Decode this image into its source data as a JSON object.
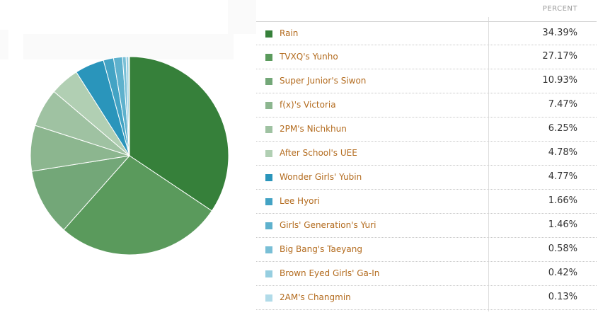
{
  "table": {
    "column_header": "PERCENT"
  },
  "chart_data": {
    "type": "pie",
    "categories": [
      "Rain",
      "TVXQ's Yunho",
      "Super Junior's Siwon",
      "f(x)'s Victoria",
      "2PM's Nichkhun",
      "After School's UEE",
      "Wonder Girls' Yubin",
      "Lee Hyori",
      "Girls' Generation's Yuri",
      "Big Bang's Taeyang",
      "Brown Eyed Girls' Ga-In",
      "2AM's Changmin"
    ],
    "values": [
      34.39,
      27.17,
      10.93,
      7.47,
      6.25,
      4.78,
      4.77,
      1.66,
      1.46,
      0.58,
      0.42,
      0.13
    ],
    "value_labels": [
      "34.39%",
      "27.17%",
      "10.93%",
      "7.47%",
      "6.25%",
      "4.78%",
      "4.77%",
      "1.66%",
      "1.46%",
      "0.58%",
      "0.42%",
      "0.13%"
    ],
    "colors": [
      "#36803a",
      "#5a9a5c",
      "#73a778",
      "#8cb68f",
      "#9fc2a2",
      "#b1cfb3",
      "#2a95bb",
      "#43a3c4",
      "#5eb1cd",
      "#79bfd6",
      "#96cee0",
      "#b1dbe9"
    ],
    "legend_placement": "right"
  }
}
